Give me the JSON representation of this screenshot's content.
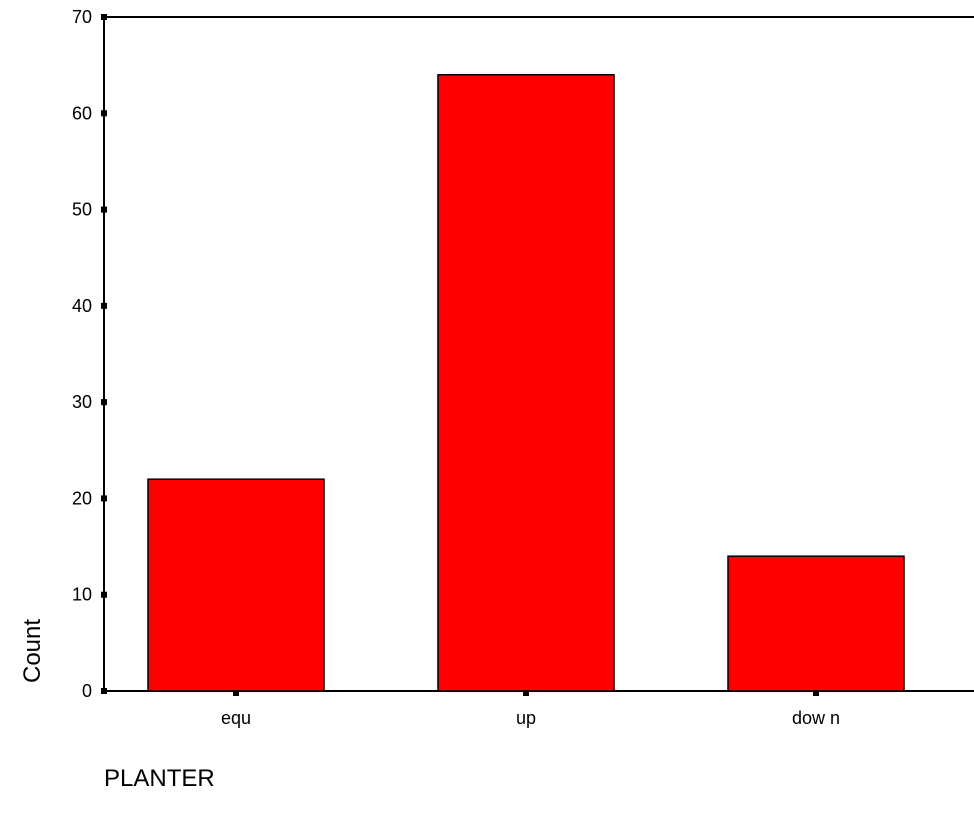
{
  "chart_data": {
    "type": "bar",
    "categories": [
      "equ",
      "up",
      "dow n"
    ],
    "values": [
      22,
      64,
      14
    ],
    "xlabel": "PLANTER",
    "ylabel": "Count",
    "ylim": [
      0,
      70
    ],
    "yticks": [
      0,
      10,
      20,
      30,
      40,
      50,
      60,
      70
    ],
    "grid": false,
    "colors": {
      "bar_fill": "#ff0000",
      "bar_stroke": "#000000",
      "axis": "#000000"
    }
  }
}
